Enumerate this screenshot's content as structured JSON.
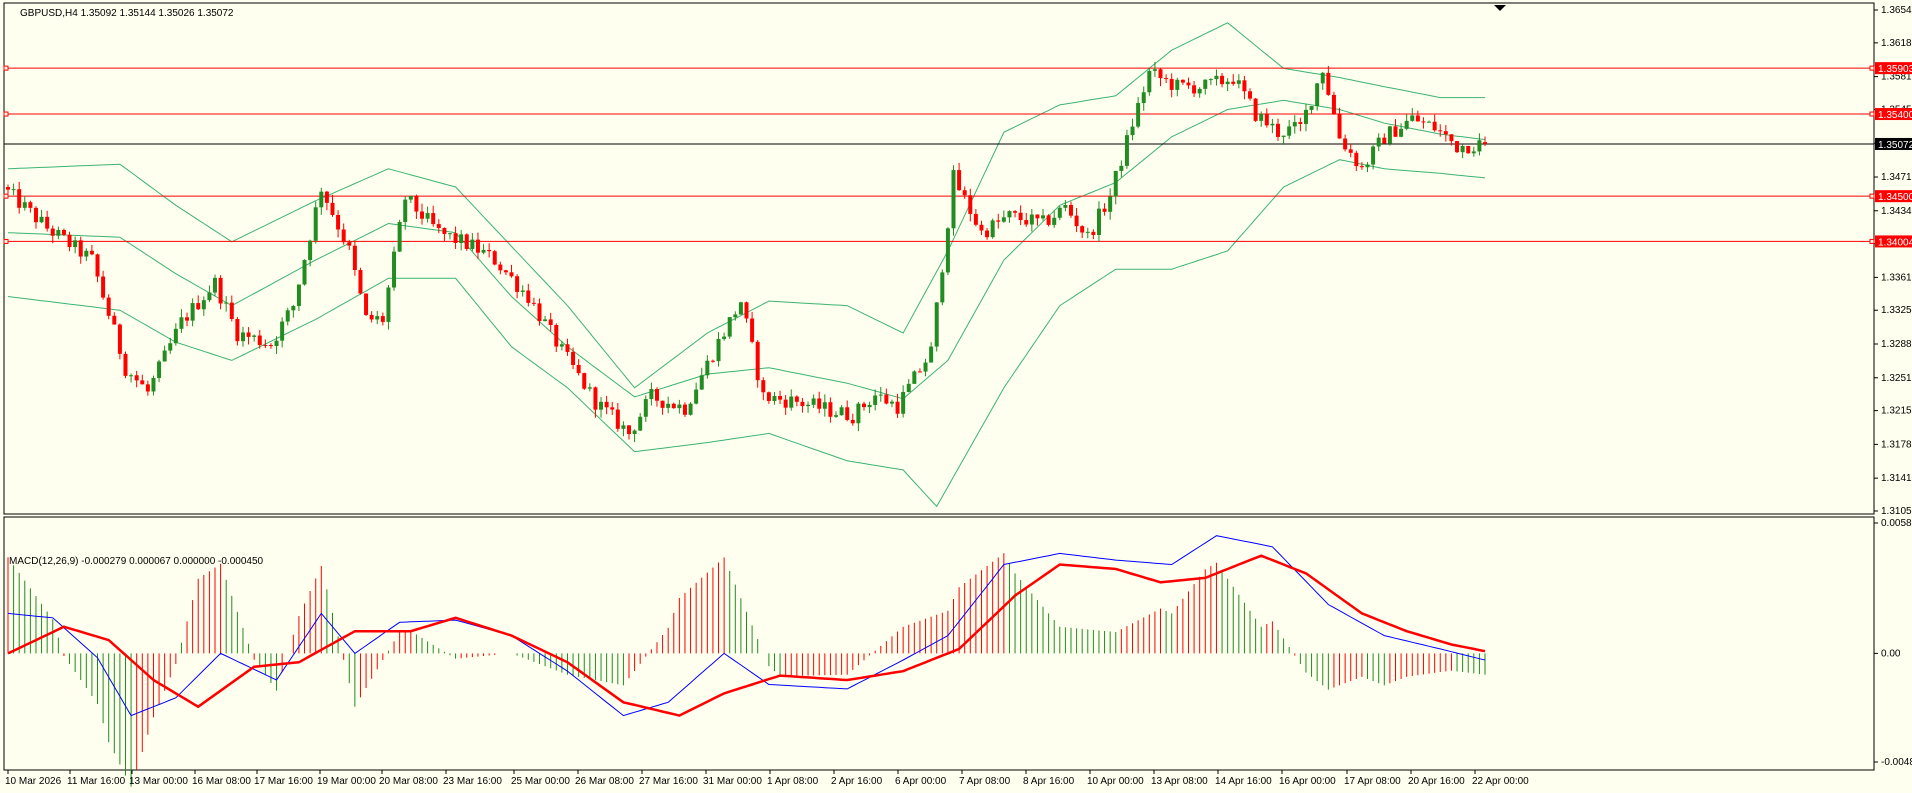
{
  "chart_data": {
    "type": "candlestick",
    "symbol_header": "GBPUSD,H4  1.35092 1.35144 1.35026 1.35072",
    "price_axis": {
      "ylim": [
        1.3105,
        1.3654
      ],
      "ticks": [
        "1.36540",
        "1.36180",
        "1.35810",
        "1.35450",
        "1.35080",
        "1.34710",
        "1.34340",
        "1.33980",
        "1.33610",
        "1.33250",
        "1.32880",
        "1.32510",
        "1.32150",
        "1.31780",
        "1.31410",
        "1.31050"
      ]
    },
    "current_price": "1.35072",
    "horizontal_levels": [
      {
        "label": "1.35903",
        "value": 1.35903
      },
      {
        "label": "1.35400",
        "value": 1.354
      },
      {
        "label": "1.34500",
        "value": 1.345
      },
      {
        "label": "1.34004",
        "value": 1.34004
      }
    ],
    "time_axis": [
      "10 Mar 2026",
      "11 Mar 16:00",
      "13 Mar 00:00",
      "16 Mar 08:00",
      "17 Mar 16:00",
      "19 Mar 00:00",
      "20 Mar 08:00",
      "23 Mar 16:00",
      "25 Mar 00:00",
      "26 Mar 08:00",
      "27 Mar 16:00",
      "31 Mar 00:00",
      "1 Apr 08:00",
      "2 Apr 16:00",
      "6 Apr 00:00",
      "7 Apr 08:00",
      "8 Apr 16:00",
      "10 Apr 00:00",
      "13 Apr 08:00",
      "14 Apr 16:00",
      "16 Apr 00:00",
      "17 Apr 08:00",
      "20 Apr 16:00",
      "22 Apr 00:00"
    ],
    "price_path": [
      [
        0,
        1.346
      ],
      [
        8,
        1.3415
      ],
      [
        16,
        1.338
      ],
      [
        22,
        1.3262
      ],
      [
        26,
        1.3235
      ],
      [
        32,
        1.3312
      ],
      [
        38,
        1.3355
      ],
      [
        42,
        1.33
      ],
      [
        48,
        1.3288
      ],
      [
        52,
        1.333
      ],
      [
        57,
        1.346
      ],
      [
        62,
        1.339
      ],
      [
        65,
        1.3315
      ],
      [
        68,
        1.3315
      ],
      [
        72,
        1.3448
      ],
      [
        78,
        1.341
      ],
      [
        84,
        1.3395
      ],
      [
        88,
        1.338
      ],
      [
        94,
        1.334
      ],
      [
        100,
        1.328
      ],
      [
        106,
        1.3225
      ],
      [
        112,
        1.319
      ],
      [
        116,
        1.323
      ],
      [
        122,
        1.3218
      ],
      [
        128,
        1.329
      ],
      [
        132,
        1.3335
      ],
      [
        136,
        1.323
      ],
      [
        142,
        1.3225
      ],
      [
        148,
        1.3215
      ],
      [
        152,
        1.321
      ],
      [
        156,
        1.3232
      ],
      [
        160,
        1.322
      ],
      [
        166,
        1.328
      ],
      [
        170,
        1.347
      ],
      [
        175,
        1.341
      ],
      [
        180,
        1.3428
      ],
      [
        186,
        1.342
      ],
      [
        190,
        1.3438
      ],
      [
        194,
        1.3405
      ],
      [
        198,
        1.345
      ],
      [
        202,
        1.353
      ],
      [
        205,
        1.3585
      ],
      [
        210,
        1.357
      ],
      [
        215,
        1.357
      ],
      [
        220,
        1.358
      ],
      [
        224,
        1.354
      ],
      [
        228,
        1.352
      ],
      [
        232,
        1.3525
      ],
      [
        236,
        1.359
      ],
      [
        239,
        1.3515
      ],
      [
        243,
        1.348
      ],
      [
        247,
        1.3515
      ],
      [
        252,
        1.3535
      ],
      [
        256,
        1.3525
      ],
      [
        260,
        1.3505
      ],
      [
        264,
        1.3507
      ]
    ],
    "bollinger_bands": {
      "upper": [
        [
          0,
          1.348
        ],
        [
          20,
          1.3485
        ],
        [
          30,
          1.344
        ],
        [
          40,
          1.34
        ],
        [
          55,
          1.3445
        ],
        [
          68,
          1.348
        ],
        [
          80,
          1.346
        ],
        [
          90,
          1.3395
        ],
        [
          100,
          1.333
        ],
        [
          112,
          1.324
        ],
        [
          125,
          1.33
        ],
        [
          136,
          1.3335
        ],
        [
          150,
          1.333
        ],
        [
          160,
          1.33
        ],
        [
          168,
          1.339
        ],
        [
          178,
          1.352
        ],
        [
          188,
          1.355
        ],
        [
          198,
          1.356
        ],
        [
          208,
          1.361
        ],
        [
          218,
          1.364
        ],
        [
          228,
          1.359
        ],
        [
          238,
          1.358
        ],
        [
          246,
          1.357
        ],
        [
          256,
          1.3558
        ],
        [
          264,
          1.3558
        ]
      ],
      "middle": [
        [
          0,
          1.341
        ],
        [
          20,
          1.3405
        ],
        [
          30,
          1.3365
        ],
        [
          40,
          1.333
        ],
        [
          55,
          1.338
        ],
        [
          68,
          1.342
        ],
        [
          80,
          1.341
        ],
        [
          90,
          1.334
        ],
        [
          100,
          1.3285
        ],
        [
          112,
          1.323
        ],
        [
          125,
          1.3255
        ],
        [
          136,
          1.3262
        ],
        [
          150,
          1.3245
        ],
        [
          160,
          1.3228
        ],
        [
          168,
          1.327
        ],
        [
          178,
          1.338
        ],
        [
          188,
          1.344
        ],
        [
          198,
          1.3465
        ],
        [
          208,
          1.3515
        ],
        [
          218,
          1.3545
        ],
        [
          228,
          1.3555
        ],
        [
          238,
          1.3545
        ],
        [
          246,
          1.353
        ],
        [
          256,
          1.3518
        ],
        [
          264,
          1.3512
        ]
      ],
      "lower": [
        [
          0,
          1.334
        ],
        [
          20,
          1.3325
        ],
        [
          30,
          1.329
        ],
        [
          40,
          1.327
        ],
        [
          55,
          1.3315
        ],
        [
          68,
          1.336
        ],
        [
          80,
          1.336
        ],
        [
          90,
          1.3285
        ],
        [
          100,
          1.324
        ],
        [
          112,
          1.317
        ],
        [
          125,
          1.318
        ],
        [
          136,
          1.319
        ],
        [
          150,
          1.316
        ],
        [
          160,
          1.315
        ],
        [
          166,
          1.311
        ],
        [
          178,
          1.324
        ],
        [
          188,
          1.333
        ],
        [
          198,
          1.337
        ],
        [
          208,
          1.337
        ],
        [
          218,
          1.339
        ],
        [
          228,
          1.346
        ],
        [
          238,
          1.349
        ],
        [
          246,
          1.348
        ],
        [
          256,
          1.3475
        ],
        [
          264,
          1.347
        ]
      ]
    },
    "macd": {
      "header": "MACD(12,26,9) -0.000279 0.000067 0.000000 -0.000450",
      "ylim": [
        -0.00489,
        0.00587
      ],
      "ticks": [
        "0.00587",
        "0.00",
        "-0.00489"
      ],
      "macd_line": [
        [
          0,
          0.0018
        ],
        [
          8,
          0.0016
        ],
        [
          16,
          -0.0002
        ],
        [
          22,
          -0.0028
        ],
        [
          30,
          -0.002
        ],
        [
          38,
          0.0
        ],
        [
          48,
          -0.0012
        ],
        [
          56,
          0.0018
        ],
        [
          62,
          0.0
        ],
        [
          70,
          0.0014
        ],
        [
          80,
          0.0015
        ],
        [
          90,
          0.0008
        ],
        [
          100,
          -0.0008
        ],
        [
          110,
          -0.0028
        ],
        [
          118,
          -0.0022
        ],
        [
          128,
          0.0
        ],
        [
          136,
          -0.0014
        ],
        [
          150,
          -0.0016
        ],
        [
          160,
          -0.0003
        ],
        [
          168,
          0.0008
        ],
        [
          178,
          0.004
        ],
        [
          188,
          0.0045
        ],
        [
          198,
          0.0042
        ],
        [
          208,
          0.004
        ],
        [
          216,
          0.0053
        ],
        [
          226,
          0.0048
        ],
        [
          236,
          0.0022
        ],
        [
          246,
          0.0008
        ],
        [
          256,
          0.0002
        ],
        [
          264,
          -0.0003
        ]
      ],
      "signal_line": [
        [
          0,
          0.0
        ],
        [
          10,
          0.0012
        ],
        [
          18,
          0.0006
        ],
        [
          26,
          -0.0012
        ],
        [
          34,
          -0.0024
        ],
        [
          44,
          -0.0006
        ],
        [
          52,
          -0.0004
        ],
        [
          62,
          0.001
        ],
        [
          72,
          0.001
        ],
        [
          80,
          0.0016
        ],
        [
          90,
          0.0008
        ],
        [
          100,
          -0.0004
        ],
        [
          110,
          -0.0022
        ],
        [
          120,
          -0.0028
        ],
        [
          128,
          -0.0018
        ],
        [
          138,
          -0.001
        ],
        [
          150,
          -0.0012
        ],
        [
          160,
          -0.0008
        ],
        [
          170,
          0.0002
        ],
        [
          180,
          0.0026
        ],
        [
          188,
          0.004
        ],
        [
          198,
          0.0038
        ],
        [
          206,
          0.0032
        ],
        [
          214,
          0.0034
        ],
        [
          224,
          0.0044
        ],
        [
          232,
          0.0036
        ],
        [
          242,
          0.0018
        ],
        [
          250,
          0.001
        ],
        [
          258,
          0.0004
        ],
        [
          264,
          0.0001
        ]
      ]
    }
  }
}
